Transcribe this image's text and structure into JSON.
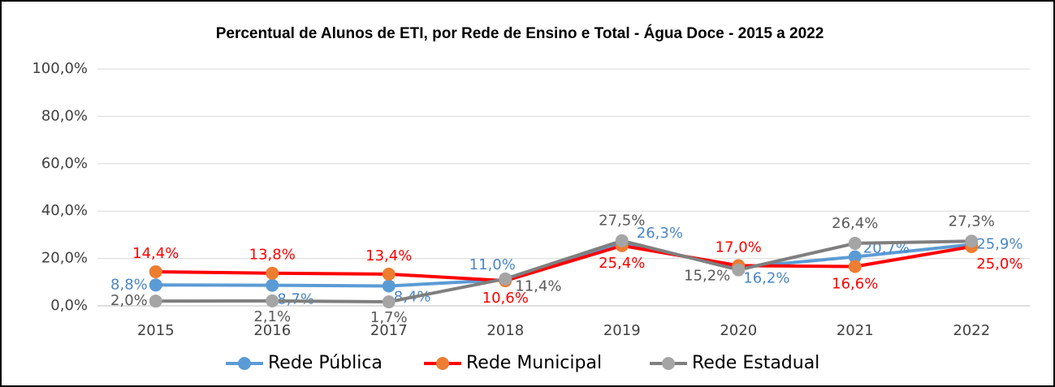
{
  "chart_data": {
    "type": "line",
    "title": "Percentual de Alunos de ETI, por Rede de Ensino e Total - Água Doce - 2015 a 2022",
    "categories": [
      "2015",
      "2016",
      "2017",
      "2018",
      "2019",
      "2020",
      "2021",
      "2022"
    ],
    "series": [
      {
        "name": "Rede Pública",
        "color": "#5b9bd5",
        "marker_color": "#5b9bd5",
        "label_color": "#4a86c5",
        "values": [
          8.8,
          8.7,
          8.4,
          11.0,
          26.3,
          16.2,
          20.7,
          25.9
        ],
        "value_labels": [
          "8,8%",
          "8,7%",
          "8,4%",
          "11,0%",
          "26,3%",
          "16,2%",
          "20,7%",
          "25,9%"
        ]
      },
      {
        "name": "Rede Municipal",
        "color": "#ff0000",
        "marker_color": "#ed7d31",
        "label_color": "#ff0000",
        "values": [
          14.4,
          13.8,
          13.4,
          10.6,
          25.4,
          17.0,
          16.6,
          25.0
        ],
        "value_labels": [
          "14,4%",
          "13,8%",
          "13,4%",
          "10,6%",
          "25,4%",
          "17,0%",
          "16,6%",
          "25,0%"
        ]
      },
      {
        "name": "Rede Estadual",
        "color": "#7f7f7f",
        "marker_color": "#a5a5a5",
        "label_color": "#595959",
        "values": [
          2.0,
          2.1,
          1.7,
          11.4,
          27.5,
          15.2,
          26.4,
          27.3
        ],
        "value_labels": [
          "2,0%",
          "2,1%",
          "1,7%",
          "11,4%",
          "27,5%",
          "15,2%",
          "26,4%",
          "27,3%"
        ]
      }
    ],
    "ylim": [
      0,
      100
    ],
    "yticks": [
      {
        "value": 0,
        "label": "0,0%"
      },
      {
        "value": 20,
        "label": "20,0%"
      },
      {
        "value": 40,
        "label": "40,0%"
      },
      {
        "value": 60,
        "label": "60,0%"
      },
      {
        "value": 80,
        "label": "80,0%"
      },
      {
        "value": 100,
        "label": "100,0%"
      }
    ],
    "grid": true,
    "legend": "bottom"
  }
}
